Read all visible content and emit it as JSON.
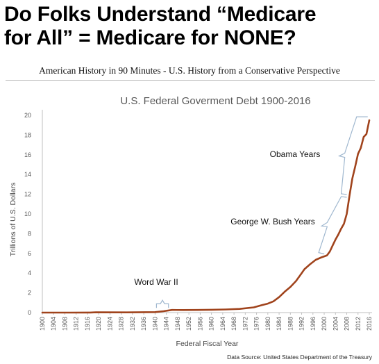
{
  "headline": {
    "line1": "Do Folks Understand “Medicare",
    "line2": "for All” = Medicare for NONE?"
  },
  "subtitle": "American History in 90 Minutes - U.S. History from a Conservative Perspective",
  "colors": {
    "line": "#a0431c",
    "brace": "#9fb7cf",
    "grid": "#d9d9d9"
  },
  "chart_data": {
    "type": "line",
    "title": "U.S. Federal Goverment Debt 1900-2016",
    "xlabel": "Federal Fiscal Year",
    "ylabel": "Trillions of U.S. Dollars",
    "source": "Data Source: United States Department of the Treasury",
    "xlim": [
      1900,
      2016
    ],
    "ylim": [
      0,
      20
    ],
    "yticks": [
      "0",
      "2",
      "4",
      "6",
      "8",
      "10",
      "12",
      "14",
      "16",
      "18",
      "20"
    ],
    "xticks": [
      "1900",
      "1904",
      "1908",
      "1912",
      "1916",
      "1920",
      "1924",
      "1928",
      "1932",
      "1936",
      "1940",
      "1944",
      "1948",
      "1952",
      "1956",
      "1960",
      "1964",
      "1968",
      "1972",
      "1976",
      "1980",
      "1984",
      "1988",
      "1992",
      "1996",
      "2000",
      "2004",
      "2008",
      "2012",
      "2016"
    ],
    "grid": false,
    "series": [
      {
        "x": [
          1900,
          1910,
          1917,
          1919,
          1930,
          1940,
          1943,
          1946,
          1950,
          1955,
          1960,
          1965,
          1970,
          1975,
          1978,
          1980,
          1982,
          1984,
          1986,
          1988,
          1990,
          1992,
          1993,
          1995,
          1997,
          1999,
          2000,
          2001,
          2002,
          2003,
          2004,
          2005,
          2006,
          2007,
          2008,
          2009,
          2010,
          2011,
          2012,
          2013,
          2014,
          2015,
          2016
        ],
        "y": [
          0.002,
          0.003,
          0.01,
          0.03,
          0.02,
          0.05,
          0.14,
          0.27,
          0.26,
          0.27,
          0.29,
          0.32,
          0.37,
          0.53,
          0.77,
          0.91,
          1.14,
          1.57,
          2.12,
          2.6,
          3.2,
          4.0,
          4.4,
          4.9,
          5.35,
          5.6,
          5.7,
          5.8,
          6.2,
          6.8,
          7.4,
          7.9,
          8.5,
          9.0,
          10.0,
          11.9,
          13.6,
          14.8,
          16.1,
          16.7,
          17.8,
          18.1,
          19.5
        ]
      }
    ],
    "annotations": [
      {
        "label": "Word War II",
        "from": 1940,
        "to": 1945
      },
      {
        "label": "George W. Bush Years",
        "from": 2001,
        "to": 2009
      },
      {
        "label": "Obama Years",
        "from": 2009,
        "to": 2017
      }
    ]
  }
}
